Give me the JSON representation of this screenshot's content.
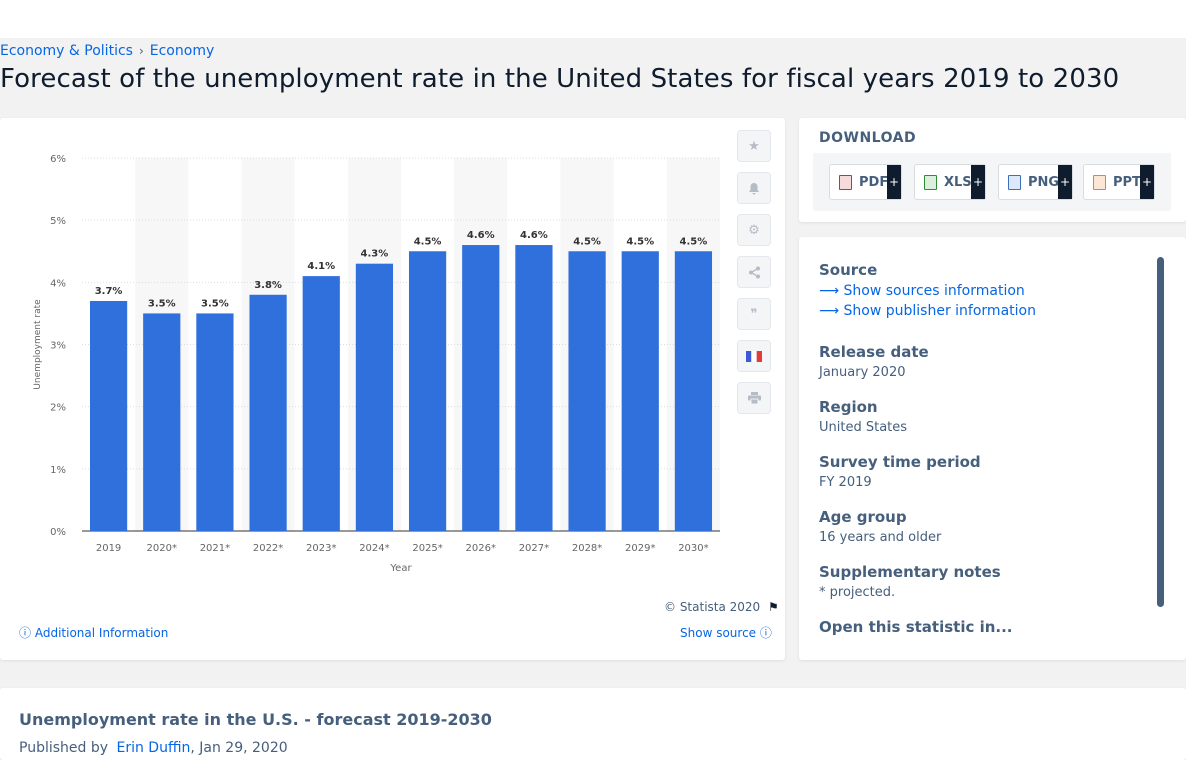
{
  "breadcrumb": [
    "Economy & Politics",
    "Economy"
  ],
  "page_title": "Forecast of the unemployment rate in the United States for fiscal years 2019 to 2030",
  "chart_data": {
    "type": "bar",
    "categories": [
      "2019",
      "2020*",
      "2021*",
      "2022*",
      "2023*",
      "2024*",
      "2025*",
      "2026*",
      "2027*",
      "2028*",
      "2029*",
      "2030*"
    ],
    "values": [
      3.7,
      3.5,
      3.5,
      3.8,
      4.1,
      4.3,
      4.5,
      4.6,
      4.6,
      4.5,
      4.5,
      4.5
    ],
    "data_labels": [
      "3.7%",
      "3.5%",
      "3.5%",
      "3.8%",
      "4.1%",
      "4.3%",
      "4.5%",
      "4.6%",
      "4.6%",
      "4.5%",
      "4.5%",
      "4.5%"
    ],
    "title": "",
    "xlabel": "Year",
    "ylabel": "Unemployment rate",
    "ylim": [
      0,
      6
    ],
    "yticks": [
      "0%",
      "1%",
      "2%",
      "3%",
      "4%",
      "5%",
      "6%"
    ],
    "bar_color": "#3070dd",
    "grid": true,
    "legend": "none"
  },
  "chart_footer": {
    "copyright": "© Statista 2020",
    "additional_info": "Additional Information",
    "show_source": "Show source"
  },
  "tools": [
    "star-icon",
    "bell-icon",
    "gear-icon",
    "share-icon",
    "quote-icon",
    "french-flag-icon",
    "print-icon"
  ],
  "download": {
    "heading": "DOWNLOAD",
    "formats": [
      "PDF",
      "XLS",
      "PNG",
      "PPT"
    ],
    "plus": "+"
  },
  "details": {
    "source_label": "Source",
    "show_sources": "Show sources information",
    "show_publisher": "Show publisher information",
    "release_date_label": "Release date",
    "release_date": "January 2020",
    "region_label": "Region",
    "region": "United States",
    "survey_period_label": "Survey time period",
    "survey_period": "FY 2019",
    "age_group_label": "Age group",
    "age_group": "16 years and older",
    "supp_notes_label": "Supplementary notes",
    "supp_notes": "* projected.",
    "open_in": "Open this statistic in..."
  },
  "footer": {
    "title": "Unemployment rate in the U.S. - forecast 2019-2030",
    "published_by": "Published by",
    "author": "Erin Duffin",
    "date": ", Jan 29, 2020"
  },
  "colors": {
    "accent": "#0666e5",
    "bar": "#3070dd",
    "text_muted": "#455f7c",
    "pdf": "#d9282f",
    "xls": "#2e8b3a",
    "png": "#3a6fc4",
    "ppt": "#e0842d"
  }
}
